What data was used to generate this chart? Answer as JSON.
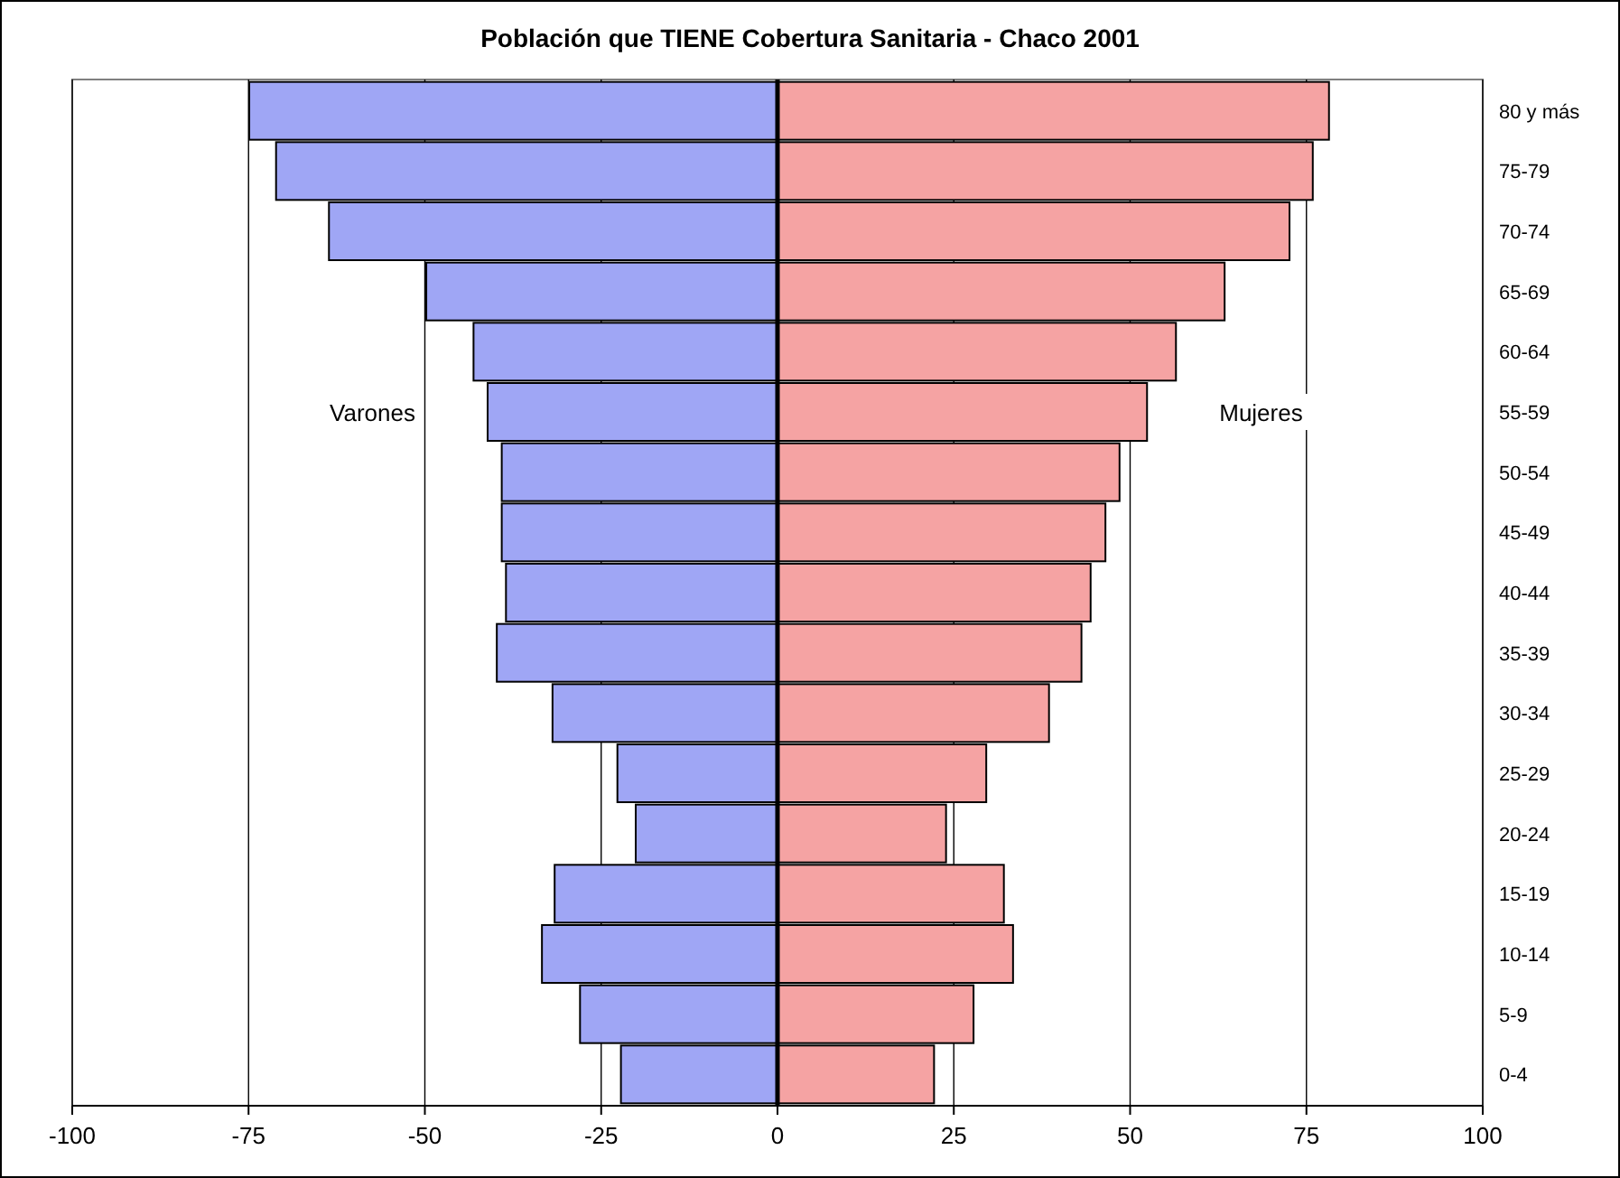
{
  "chart_data": {
    "type": "bar",
    "orientation": "horizontal",
    "title": "Población que TIENE Cobertura Sanitaria - Chaco 2001",
    "categories": [
      "80 y más",
      "75-79",
      "70-74",
      "65-69",
      "60-64",
      "55-59",
      "50-54",
      "45-49",
      "40-44",
      "35-39",
      "30-34",
      "25-29",
      "20-24",
      "15-19",
      "10-14",
      "5-9",
      "0-4"
    ],
    "series": [
      {
        "name": "Varones",
        "color": "#9fa6f5",
        "values": [
          -74.9,
          -71.1,
          -63.6,
          -49.8,
          -43.1,
          -41.1,
          -39.1,
          -39.1,
          -38.5,
          -39.8,
          -31.9,
          -22.7,
          -20.1,
          -31.6,
          -33.4,
          -28.0,
          -22.2
        ]
      },
      {
        "name": "Mujeres",
        "color": "#f5a3a3",
        "values": [
          78.2,
          75.9,
          72.6,
          63.4,
          56.5,
          52.4,
          48.5,
          46.5,
          44.4,
          43.1,
          38.5,
          29.6,
          23.9,
          32.1,
          33.4,
          27.8,
          22.2
        ]
      }
    ],
    "stacked": true,
    "xlim": [
      -100,
      100
    ],
    "xticks": [
      -100,
      -75,
      -50,
      -25,
      0,
      25,
      50,
      75,
      100
    ],
    "grid": "x",
    "legend": false
  }
}
